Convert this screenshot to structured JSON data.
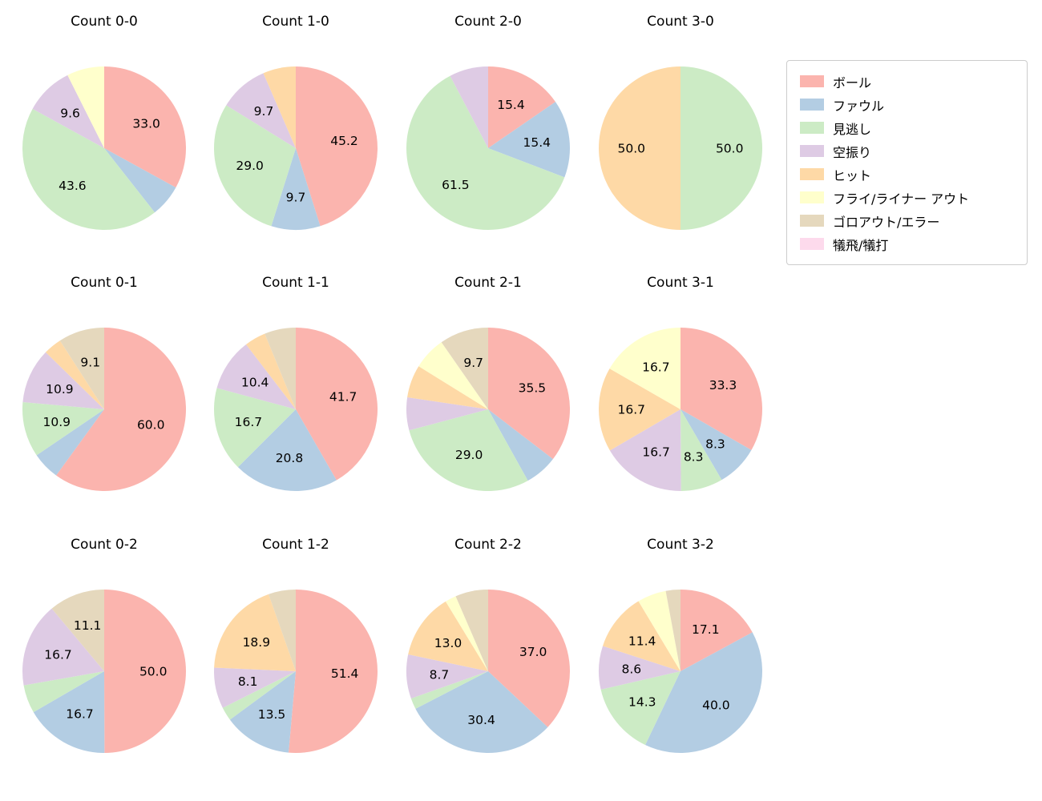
{
  "figure": {
    "background": "#ffffff"
  },
  "legend": {
    "position": "upper right outside",
    "items": [
      {
        "key": "ball",
        "label": "ボール",
        "color": "#fbb4ae"
      },
      {
        "key": "foul",
        "label": "ファウル",
        "color": "#b3cde3"
      },
      {
        "key": "called-strike",
        "label": "見逃し",
        "color": "#ccebc5"
      },
      {
        "key": "swinging-strike",
        "label": "空振り",
        "color": "#decbe4"
      },
      {
        "key": "hit",
        "label": "ヒット",
        "color": "#fed9a6"
      },
      {
        "key": "fly-liner-out",
        "label": "フライ/ライナー アウト",
        "color": "#ffffcc"
      },
      {
        "key": "ground-out-error",
        "label": "ゴロアウト/エラー",
        "color": "#e5d8bd"
      },
      {
        "key": "sacrifice",
        "label": "犠飛/犠打",
        "color": "#fddaec"
      }
    ]
  },
  "chart_data": [
    {
      "type": "pie",
      "title": "Count 0-0",
      "start_angle": 90,
      "direction": "clockwise",
      "slices": [
        {
          "category": "ボール",
          "value": 33.0,
          "label": "33.0"
        },
        {
          "category": "ファウル",
          "value": 6.4,
          "label": ""
        },
        {
          "category": "見逃し",
          "value": 43.6,
          "label": "43.6"
        },
        {
          "category": "空振り",
          "value": 9.6,
          "label": "9.6"
        },
        {
          "category": "フライ/ライナー アウト",
          "value": 7.4,
          "label": ""
        }
      ]
    },
    {
      "type": "pie",
      "title": "Count 1-0",
      "start_angle": 90,
      "direction": "clockwise",
      "slices": [
        {
          "category": "ボール",
          "value": 45.2,
          "label": "45.2"
        },
        {
          "category": "ファウル",
          "value": 9.7,
          "label": "9.7"
        },
        {
          "category": "見逃し",
          "value": 29.0,
          "label": "29.0"
        },
        {
          "category": "空振り",
          "value": 9.7,
          "label": "9.7"
        },
        {
          "category": "ヒット",
          "value": 6.5,
          "label": ""
        }
      ]
    },
    {
      "type": "pie",
      "title": "Count 2-0",
      "start_angle": 90,
      "direction": "clockwise",
      "slices": [
        {
          "category": "ボール",
          "value": 15.4,
          "label": "15.4"
        },
        {
          "category": "ファウル",
          "value": 15.4,
          "label": "15.4"
        },
        {
          "category": "見逃し",
          "value": 61.5,
          "label": "61.5"
        },
        {
          "category": "空振り",
          "value": 7.7,
          "label": ""
        }
      ]
    },
    {
      "type": "pie",
      "title": "Count 3-0",
      "start_angle": 90,
      "direction": "clockwise",
      "slices": [
        {
          "category": "見逃し",
          "value": 50.0,
          "label": "50.0"
        },
        {
          "category": "ヒット",
          "value": 50.0,
          "label": "50.0"
        }
      ]
    },
    {
      "type": "pie",
      "title": "Count 0-1",
      "start_angle": 90,
      "direction": "clockwise",
      "slices": [
        {
          "category": "ボール",
          "value": 60.0,
          "label": "60.0"
        },
        {
          "category": "ファウル",
          "value": 5.5,
          "label": ""
        },
        {
          "category": "見逃し",
          "value": 10.9,
          "label": "10.9"
        },
        {
          "category": "空振り",
          "value": 10.9,
          "label": "10.9"
        },
        {
          "category": "ヒット",
          "value": 3.6,
          "label": ""
        },
        {
          "category": "ゴロアウト/エラー",
          "value": 9.1,
          "label": "9.1"
        }
      ]
    },
    {
      "type": "pie",
      "title": "Count 1-1",
      "start_angle": 90,
      "direction": "clockwise",
      "slices": [
        {
          "category": "ボール",
          "value": 41.7,
          "label": "41.7"
        },
        {
          "category": "ファウル",
          "value": 20.8,
          "label": "20.8"
        },
        {
          "category": "見逃し",
          "value": 16.7,
          "label": "16.7"
        },
        {
          "category": "空振り",
          "value": 10.4,
          "label": "10.4"
        },
        {
          "category": "ヒット",
          "value": 4.2,
          "label": ""
        },
        {
          "category": "ゴロアウト/エラー",
          "value": 6.2,
          "label": ""
        }
      ]
    },
    {
      "type": "pie",
      "title": "Count 2-1",
      "start_angle": 90,
      "direction": "clockwise",
      "slices": [
        {
          "category": "ボール",
          "value": 35.5,
          "label": "35.5"
        },
        {
          "category": "ファウル",
          "value": 6.5,
          "label": ""
        },
        {
          "category": "見逃し",
          "value": 29.0,
          "label": "29.0"
        },
        {
          "category": "空振り",
          "value": 6.5,
          "label": ""
        },
        {
          "category": "ヒット",
          "value": 6.5,
          "label": ""
        },
        {
          "category": "フライ/ライナー アウト",
          "value": 6.5,
          "label": ""
        },
        {
          "category": "ゴロアウト/エラー",
          "value": 9.7,
          "label": "9.7"
        }
      ]
    },
    {
      "type": "pie",
      "title": "Count 3-1",
      "start_angle": 90,
      "direction": "clockwise",
      "slices": [
        {
          "category": "ボール",
          "value": 33.3,
          "label": "33.3"
        },
        {
          "category": "ファウル",
          "value": 8.3,
          "label": "8.3"
        },
        {
          "category": "見逃し",
          "value": 8.3,
          "label": "8.3"
        },
        {
          "category": "空振り",
          "value": 16.7,
          "label": "16.7"
        },
        {
          "category": "ヒット",
          "value": 16.7,
          "label": "16.7"
        },
        {
          "category": "フライ/ライナー アウト",
          "value": 16.7,
          "label": "16.7"
        }
      ]
    },
    {
      "type": "pie",
      "title": "Count 0-2",
      "start_angle": 90,
      "direction": "clockwise",
      "slices": [
        {
          "category": "ボール",
          "value": 50.0,
          "label": "50.0"
        },
        {
          "category": "ファウル",
          "value": 16.7,
          "label": "16.7"
        },
        {
          "category": "見逃し",
          "value": 5.6,
          "label": ""
        },
        {
          "category": "空振り",
          "value": 16.7,
          "label": "16.7"
        },
        {
          "category": "ゴロアウト/エラー",
          "value": 11.1,
          "label": "11.1"
        }
      ]
    },
    {
      "type": "pie",
      "title": "Count 1-2",
      "start_angle": 90,
      "direction": "clockwise",
      "slices": [
        {
          "category": "ボール",
          "value": 51.4,
          "label": "51.4"
        },
        {
          "category": "ファウル",
          "value": 13.5,
          "label": "13.5"
        },
        {
          "category": "見逃し",
          "value": 2.7,
          "label": ""
        },
        {
          "category": "空振り",
          "value": 8.1,
          "label": "8.1"
        },
        {
          "category": "ヒット",
          "value": 18.9,
          "label": "18.9"
        },
        {
          "category": "ゴロアウト/エラー",
          "value": 5.4,
          "label": ""
        }
      ]
    },
    {
      "type": "pie",
      "title": "Count 2-2",
      "start_angle": 90,
      "direction": "clockwise",
      "slices": [
        {
          "category": "ボール",
          "value": 37.0,
          "label": "37.0"
        },
        {
          "category": "ファウル",
          "value": 30.4,
          "label": "30.4"
        },
        {
          "category": "見逃し",
          "value": 2.2,
          "label": ""
        },
        {
          "category": "空振り",
          "value": 8.7,
          "label": "8.7"
        },
        {
          "category": "ヒット",
          "value": 13.0,
          "label": "13.0"
        },
        {
          "category": "フライ/ライナー アウト",
          "value": 2.2,
          "label": ""
        },
        {
          "category": "ゴロアウト/エラー",
          "value": 6.5,
          "label": ""
        }
      ]
    },
    {
      "type": "pie",
      "title": "Count 3-2",
      "start_angle": 90,
      "direction": "clockwise",
      "slices": [
        {
          "category": "ボール",
          "value": 17.1,
          "label": "17.1"
        },
        {
          "category": "ファウル",
          "value": 40.0,
          "label": "40.0"
        },
        {
          "category": "見逃し",
          "value": 14.3,
          "label": "14.3"
        },
        {
          "category": "空振り",
          "value": 8.6,
          "label": "8.6"
        },
        {
          "category": "ヒット",
          "value": 11.4,
          "label": "11.4"
        },
        {
          "category": "フライ/ライナー アウト",
          "value": 5.7,
          "label": ""
        },
        {
          "category": "ゴロアウト/エラー",
          "value": 2.9,
          "label": ""
        }
      ]
    }
  ]
}
